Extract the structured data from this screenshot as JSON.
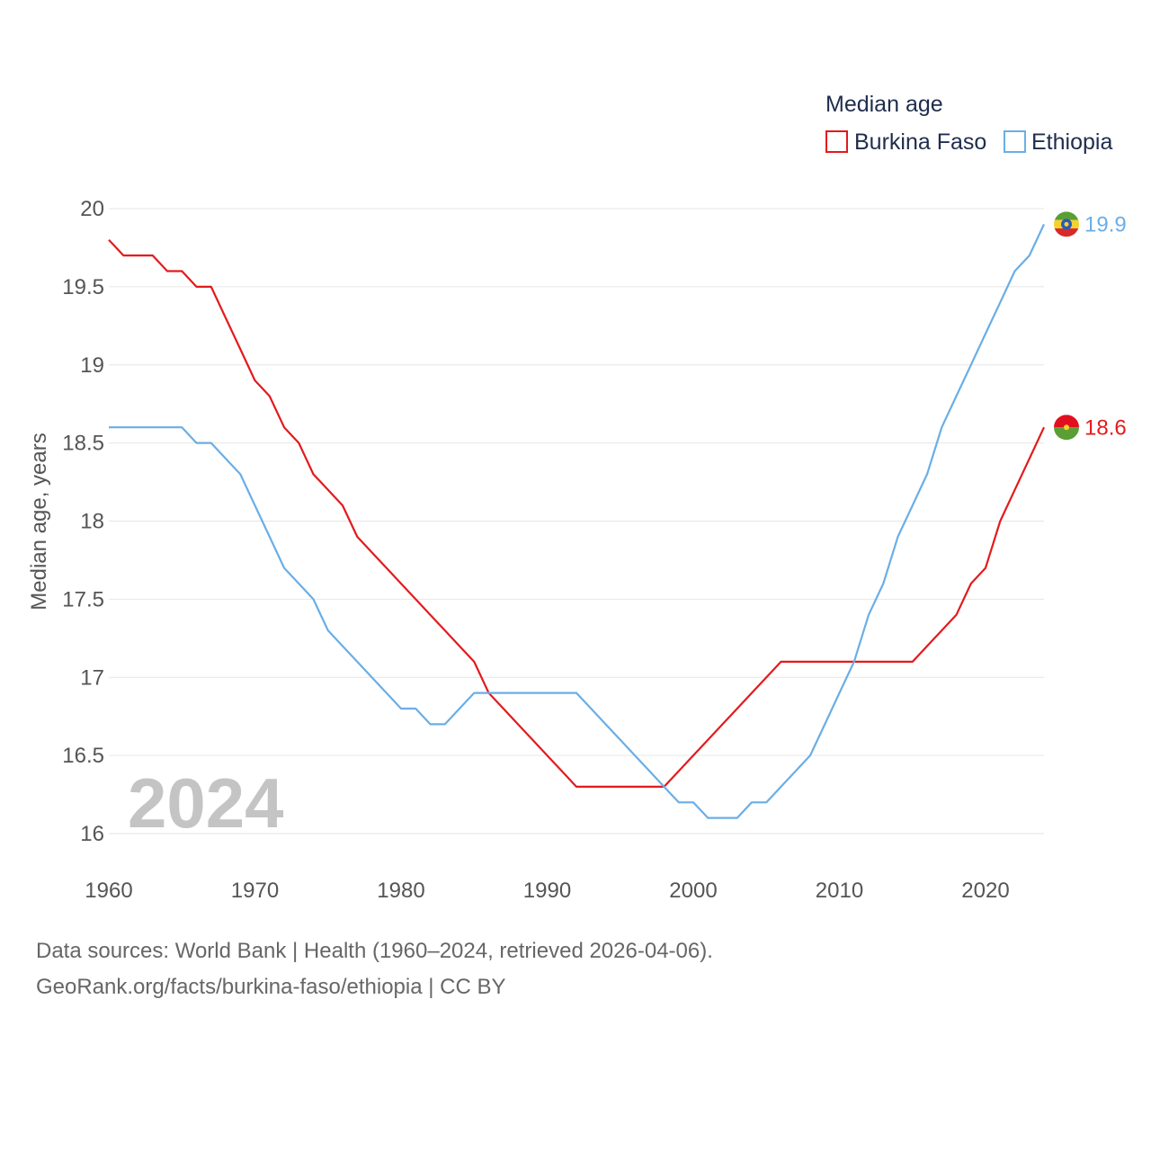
{
  "chart_data": {
    "type": "line",
    "ylabel": "Median age, years",
    "xlabel": "",
    "xlim": [
      1960,
      2024
    ],
    "ylim": [
      16,
      20
    ],
    "yticks": [
      16,
      16.5,
      17,
      17.5,
      18,
      18.5,
      19,
      19.5,
      20
    ],
    "ytick_labels": [
      "16",
      "16.5",
      "17",
      "17.5",
      "18",
      "18.5",
      "19",
      "19.5",
      "20"
    ],
    "xticks": [
      1960,
      1970,
      1980,
      1990,
      2000,
      2010,
      2020
    ],
    "xtick_labels": [
      "1960",
      "1970",
      "1980",
      "1990",
      "2000",
      "2010",
      "2020"
    ],
    "grid": true,
    "legend_title": "Median age",
    "legend_position": "top-right",
    "year_label": "2024",
    "x": [
      1960,
      1961,
      1962,
      1963,
      1964,
      1965,
      1966,
      1967,
      1968,
      1969,
      1970,
      1971,
      1972,
      1973,
      1974,
      1975,
      1976,
      1977,
      1978,
      1979,
      1980,
      1981,
      1982,
      1983,
      1984,
      1985,
      1986,
      1987,
      1988,
      1989,
      1990,
      1991,
      1992,
      1993,
      1994,
      1995,
      1996,
      1997,
      1998,
      1999,
      2000,
      2001,
      2002,
      2003,
      2004,
      2005,
      2006,
      2007,
      2008,
      2009,
      2010,
      2011,
      2012,
      2013,
      2014,
      2015,
      2016,
      2017,
      2018,
      2019,
      2020,
      2021,
      2022,
      2023,
      2024
    ],
    "series": [
      {
        "name": "Burkina Faso",
        "color": "#e31a1c",
        "end_label": "18.6",
        "flag": "burkina-faso-flag",
        "values": [
          19.8,
          19.7,
          19.7,
          19.7,
          19.6,
          19.6,
          19.5,
          19.5,
          19.3,
          19.1,
          18.9,
          18.8,
          18.6,
          18.5,
          18.3,
          18.2,
          18.1,
          17.9,
          17.8,
          17.7,
          17.6,
          17.5,
          17.4,
          17.3,
          17.2,
          17.1,
          16.9,
          16.8,
          16.7,
          16.6,
          16.5,
          16.4,
          16.3,
          16.3,
          16.3,
          16.3,
          16.3,
          16.3,
          16.3,
          16.4,
          16.5,
          16.6,
          16.7,
          16.8,
          16.9,
          17.0,
          17.1,
          17.1,
          17.1,
          17.1,
          17.1,
          17.1,
          17.1,
          17.1,
          17.1,
          17.1,
          17.2,
          17.3,
          17.4,
          17.6,
          17.7,
          18.0,
          18.2,
          18.4,
          18.6
        ]
      },
      {
        "name": "Ethiopia",
        "color": "#6aaee6",
        "end_label": "19.9",
        "flag": "ethiopia-flag",
        "values": [
          18.6,
          18.6,
          18.6,
          18.6,
          18.6,
          18.6,
          18.5,
          18.5,
          18.4,
          18.3,
          18.1,
          17.9,
          17.7,
          17.6,
          17.5,
          17.3,
          17.2,
          17.1,
          17.0,
          16.9,
          16.8,
          16.8,
          16.7,
          16.7,
          16.8,
          16.9,
          16.9,
          16.9,
          16.9,
          16.9,
          16.9,
          16.9,
          16.9,
          16.8,
          16.7,
          16.6,
          16.5,
          16.4,
          16.3,
          16.2,
          16.2,
          16.1,
          16.1,
          16.1,
          16.2,
          16.2,
          16.3,
          16.4,
          16.5,
          16.7,
          16.9,
          17.1,
          17.4,
          17.6,
          17.9,
          18.1,
          18.3,
          18.6,
          18.8,
          19.0,
          19.2,
          19.4,
          19.6,
          19.7,
          19.9
        ]
      }
    ]
  },
  "footer": {
    "sources": "Data sources: World Bank | Health (1960–2024, retrieved 2026-04-06).",
    "attribution": "GeoRank.org/facts/burkina-faso/ethiopia | CC BY"
  }
}
